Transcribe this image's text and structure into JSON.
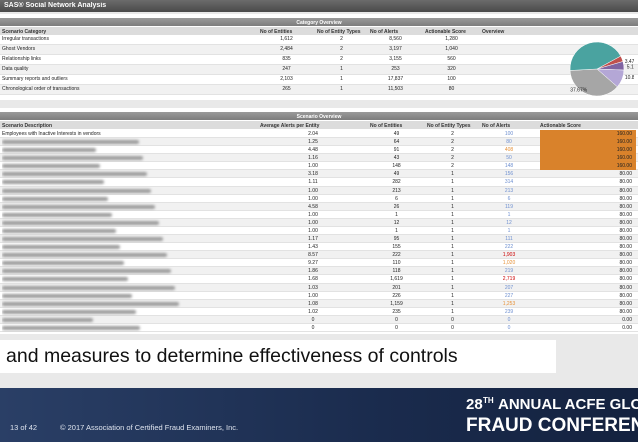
{
  "header": {
    "title": "SAS® Social Network Analysis"
  },
  "category_overview": {
    "title": "Category Overview",
    "columns": [
      "Scenario Category",
      "No of Entities",
      "No of Entity Types",
      "No of Alerts",
      "Actionable Score",
      "Overview"
    ],
    "rows": [
      [
        "Irregular transactions",
        "1,612",
        "2",
        "8,560",
        "1,280"
      ],
      [
        "Ghost Vendors",
        "2,484",
        "2",
        "3,197",
        "1,040"
      ],
      [
        "Relationship links",
        "835",
        "2",
        "3,155",
        "560"
      ],
      [
        "Data quality",
        "247",
        "1",
        "253",
        "320"
      ],
      [
        "Summary reports and outliers",
        "2,103",
        "1",
        "17,837",
        "100"
      ],
      [
        "Chronological order of transactions",
        "265",
        "1",
        "11,503",
        "80"
      ]
    ],
    "pie": {
      "values": [
        3.47,
        5.13,
        10.81,
        37.67,
        42.92
      ],
      "labels": [
        "3.47%",
        "5.13%",
        "10.81%",
        "37.67%",
        null
      ],
      "colors": [
        "#c0504d",
        "#8064a2",
        "#b4a7d6",
        "#a6a6a6",
        "#4aa3a0"
      ]
    }
  },
  "scenario_overview": {
    "title": "Scenario Overview",
    "columns": [
      "Scenario Description",
      "Average Alerts per Entity",
      "No of Entities",
      "No of Entity Types",
      "No of Alerts",
      "Actionable Score"
    ],
    "rows": [
      [
        "Employees with Inactive Interests in vendors",
        "2.04",
        "49",
        "2",
        "100",
        "160.00"
      ],
      [
        null,
        "1.25",
        "64",
        "2",
        "80",
        "160.00"
      ],
      [
        null,
        "4.48",
        "91",
        "2",
        "408",
        "160.00"
      ],
      [
        null,
        "1.16",
        "43",
        "2",
        "50",
        "160.00"
      ],
      [
        null,
        "1.00",
        "148",
        "2",
        "148",
        "160.00"
      ],
      [
        null,
        "3.18",
        "49",
        "1",
        "156",
        "80.00"
      ],
      [
        null,
        "1.11",
        "282",
        "1",
        "314",
        "80.00"
      ],
      [
        null,
        "1.00",
        "213",
        "1",
        "213",
        "80.00"
      ],
      [
        null,
        "1.00",
        "6",
        "1",
        "6",
        "80.00"
      ],
      [
        null,
        "4.58",
        "26",
        "1",
        "119",
        "80.00"
      ],
      [
        null,
        "1.00",
        "1",
        "1",
        "1",
        "80.00"
      ],
      [
        null,
        "1.00",
        "12",
        "1",
        "12",
        "80.00"
      ],
      [
        null,
        "1.00",
        "1",
        "1",
        "1",
        "80.00"
      ],
      [
        null,
        "1.17",
        "95",
        "1",
        "111",
        "80.00"
      ],
      [
        null,
        "1.43",
        "155",
        "1",
        "222",
        "80.00"
      ],
      [
        null,
        "8.57",
        "222",
        "1",
        "1,903",
        "80.00"
      ],
      [
        null,
        "9.27",
        "110",
        "1",
        "1,020",
        "80.00"
      ],
      [
        null,
        "1.86",
        "118",
        "1",
        "219",
        "80.00"
      ],
      [
        null,
        "1.68",
        "1,619",
        "1",
        "2,719",
        "80.00"
      ],
      [
        null,
        "1.03",
        "201",
        "1",
        "207",
        "80.00"
      ],
      [
        null,
        "1.00",
        "226",
        "1",
        "227",
        "80.00"
      ],
      [
        null,
        "1.08",
        "1,159",
        "1",
        "1,253",
        "80.00"
      ],
      [
        null,
        "1.02",
        "235",
        "1",
        "239",
        "80.00"
      ],
      [
        null,
        "0",
        "0",
        "0",
        "0",
        "0.00"
      ],
      [
        null,
        "0",
        "0",
        "0",
        "0",
        "0.00"
      ]
    ],
    "alert_colors": [
      "#6d8fd0",
      "#6d8fd0",
      "#e69138",
      "#6d8fd0",
      "#6d8fd0",
      "#6d8fd0",
      "#6d8fd0",
      "#6d8fd0",
      "#6d8fd0",
      "#6d8fd0",
      "#6d8fd0",
      "#6d8fd0",
      "#6d8fd0",
      "#6d8fd0",
      "#6d8fd0",
      "#cc0000",
      "#e69138",
      "#6d8fd0",
      "#cc0000",
      "#6d8fd0",
      "#6d8fd0",
      "#e69138",
      "#6d8fd0",
      "#6d8fd0",
      "#6d8fd0"
    ],
    "score_fills": [
      "#d9822b",
      "#d9822b",
      "#d9822b",
      "#d9822b",
      "#d9822b",
      null,
      null,
      null,
      null,
      null,
      null,
      null,
      null,
      null,
      null,
      null,
      null,
      null,
      null,
      null,
      null,
      null,
      null,
      null,
      null
    ]
  },
  "caption": "and measures to determine effectiveness of controls",
  "footer": {
    "page": "13 of 42",
    "copyright": "© 2017 Association of Certified Fraud Examiners, Inc.",
    "conference_number": "28",
    "conference_suffix": "TH",
    "conference_line1": "ANNUAL ACFE GLOBAL",
    "conference_line2": "FRAUD CONFERENCE"
  }
}
